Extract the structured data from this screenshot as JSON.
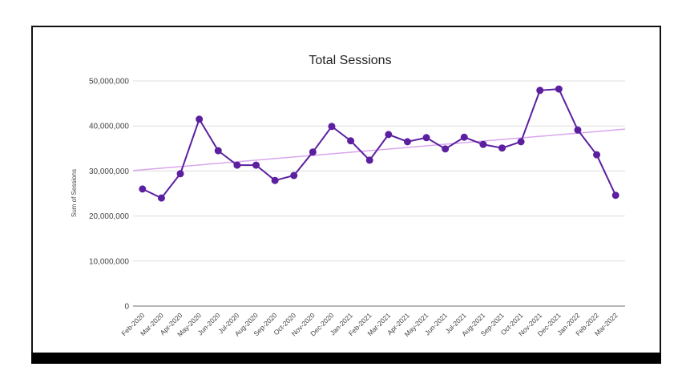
{
  "chart_data": {
    "type": "line",
    "title": "Total Sessions",
    "xlabel": "",
    "ylabel": "Sum of Sessions",
    "ylim": [
      0,
      50000000
    ],
    "yticks": [
      0,
      10000000,
      20000000,
      30000000,
      40000000,
      50000000
    ],
    "ytick_labels": [
      "0",
      "10,000,000",
      "20,000,000",
      "30,000,000",
      "40,000,000",
      "50,000,000"
    ],
    "grid": true,
    "legend": "none",
    "categories": [
      "Feb-2020",
      "Mar-2020",
      "Apr-2020",
      "May-2020",
      "Jun-2020",
      "Jul-2020",
      "Aug-2020",
      "Sep-2020",
      "Oct-2020",
      "Nov-2020",
      "Dec-2020",
      "Jan-2021",
      "Feb-2021",
      "Mar-2021",
      "Apr-2021",
      "May-2021",
      "Jun-2021",
      "Jul-2021",
      "Aug-2021",
      "Sep-2021",
      "Oct-2021",
      "Nov-2021",
      "Dec-2021",
      "Jan-2022",
      "Feb-2022",
      "Mar-2022"
    ],
    "series": [
      {
        "name": "Sum of Sessions",
        "color": "#5b1fa0",
        "values": [
          26000000,
          24000000,
          29400000,
          41500000,
          34500000,
          31300000,
          31300000,
          27900000,
          29000000,
          34200000,
          39900000,
          36700000,
          32400000,
          38100000,
          36500000,
          37400000,
          34900000,
          37500000,
          35900000,
          35100000,
          36500000,
          47900000,
          48200000,
          39100000,
          33600000,
          24600000
        ]
      }
    ],
    "trendline": {
      "type": "linear",
      "color": "#d9a6ee",
      "start": 30100000,
      "end": 39300000
    }
  }
}
